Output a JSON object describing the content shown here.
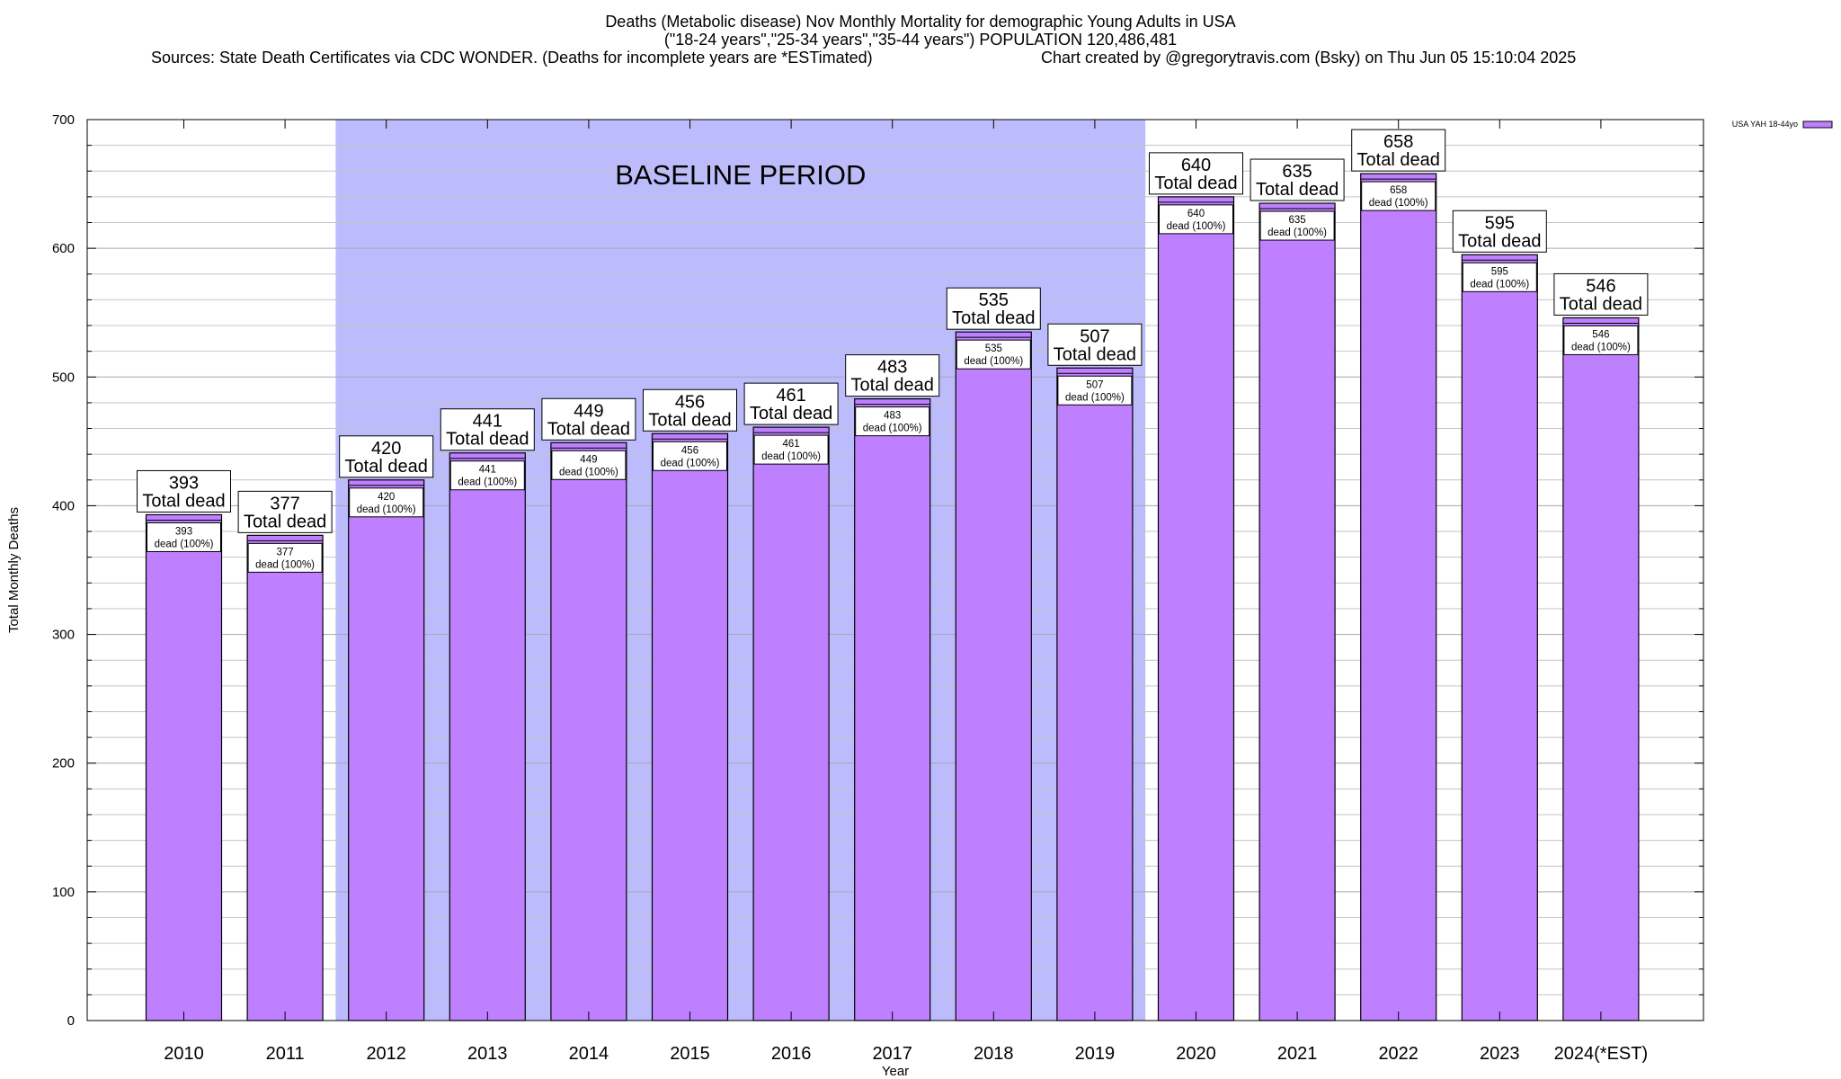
{
  "chart_data": {
    "type": "bar",
    "title_lines": [
      "Deaths (Metabolic disease) Nov Monthly Mortality for demographic Young Adults in USA",
      "(\"18-24 years\",\"25-34 years\",\"35-44 years\") POPULATION 120,486,481",
      "Sources: State Death Certificates via CDC WONDER. (Deaths for incomplete years are *ESTimated)"
    ],
    "credit": "Chart created by @gregorytravis.com (Bsky) on Thu Jun 05 15:10:04 2025",
    "xlabel": "Year",
    "ylabel": "Total Monthly Deaths",
    "ylim": [
      0,
      700
    ],
    "yticks": [
      0,
      100,
      200,
      300,
      400,
      500,
      600,
      700
    ],
    "y_minor_step": 20,
    "grid": true,
    "legend_placement": "top-right",
    "categories": [
      "2010",
      "2011",
      "2012",
      "2013",
      "2014",
      "2015",
      "2016",
      "2017",
      "2018",
      "2019",
      "2020",
      "2021",
      "2022",
      "2023",
      "2024(*EST)"
    ],
    "series": [
      {
        "name": "USA YAH 18-44yo",
        "color": "#bf80ff",
        "values": [
          393,
          377,
          420,
          441,
          449,
          456,
          461,
          483,
          535,
          507,
          640,
          635,
          658,
          595,
          546
        ]
      }
    ],
    "bar_label_total_suffix": "Total dead",
    "bar_label_inner_suffix": "dead (100%)",
    "baseline_period": {
      "label": "BASELINE PERIOD",
      "start_category": "2012",
      "end_category": "2019",
      "color": "#bcbcfc"
    }
  }
}
